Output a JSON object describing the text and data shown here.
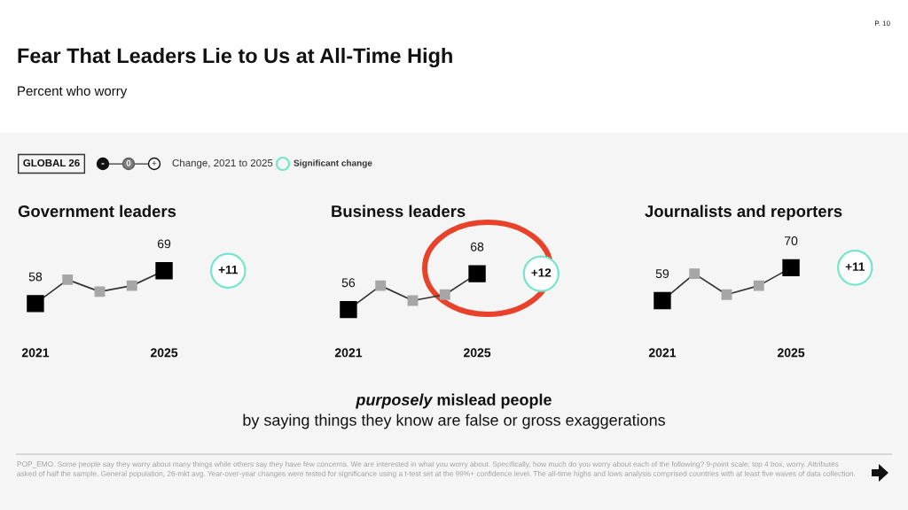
{
  "chart_data": [
    {
      "type": "other",
      "title": "Fear That Leaders Lie to Us at All-Time High",
      "subtitle": "Percent who worry",
      "annotations": [
        "P. 10",
        "GLOBAL 26",
        "-",
        "0",
        "+",
        "Change, 2021 to 2025",
        "Significant change"
      ]
    },
    {
      "type": "line",
      "title": "Government leaders",
      "categories": [
        "2021",
        null,
        null,
        null,
        "2025"
      ],
      "series": [
        {
          "color": "#333333",
          "colors": [
            "#000000",
            "#a6a6a6",
            "#a6a6a6",
            "#a6a6a6",
            "#000000"
          ],
          "values": [
            58,
            66,
            62,
            64,
            69
          ],
          "value_labels": [
            "58",
            null,
            null,
            null,
            "69"
          ]
        }
      ],
      "marker": "square",
      "tick_labels": "x",
      "annotations": [
        "+11"
      ]
    },
    {
      "type": "line",
      "title": "Business leaders",
      "categories": [
        "2021",
        null,
        null,
        null,
        "2025"
      ],
      "series": [
        {
          "color": "#333333",
          "colors": [
            "#000000",
            "#a6a6a6",
            "#a6a6a6",
            "#a6a6a6",
            "#000000"
          ],
          "values": [
            56,
            64,
            59,
            61,
            68
          ],
          "value_labels": [
            "56",
            null,
            null,
            null,
            "68"
          ]
        }
      ],
      "marker": "square",
      "tick_labels": "x",
      "annotations": [
        "+12"
      ]
    },
    {
      "type": "line",
      "title": "Journalists and reporters",
      "categories": [
        "2021",
        null,
        null,
        null,
        "2025"
      ],
      "series": [
        {
          "color": "#333333",
          "colors": [
            "#000000",
            "#a6a6a6",
            "#a6a6a6",
            "#a6a6a6",
            "#000000"
          ],
          "values": [
            59,
            68,
            61,
            64,
            70
          ],
          "value_labels": [
            "59",
            null,
            null,
            null,
            "70"
          ]
        }
      ],
      "marker": "square",
      "tick_labels": "x",
      "annotations": [
        "+11"
      ]
    },
    {
      "type": "other",
      "annotations": [
        "purposely",
        "mislead people",
        "by saying things they know are false or gross exaggerations",
        "POP_EMO. Some people say they worry about many things while others say they have few concerns. We are interested in what you worry about. Specifically, how much do you worry about each of the following? 9-point scale; top 4 box, worry. Attributes asked of half the sample. General population, 26-mkt avg. Year-over-year changes were tested for significance using a t-test set at the 99%+ confidence level. The all-time highs and lows analysis comprised countries with at least five waves of data collection."
      ]
    }
  ]
}
